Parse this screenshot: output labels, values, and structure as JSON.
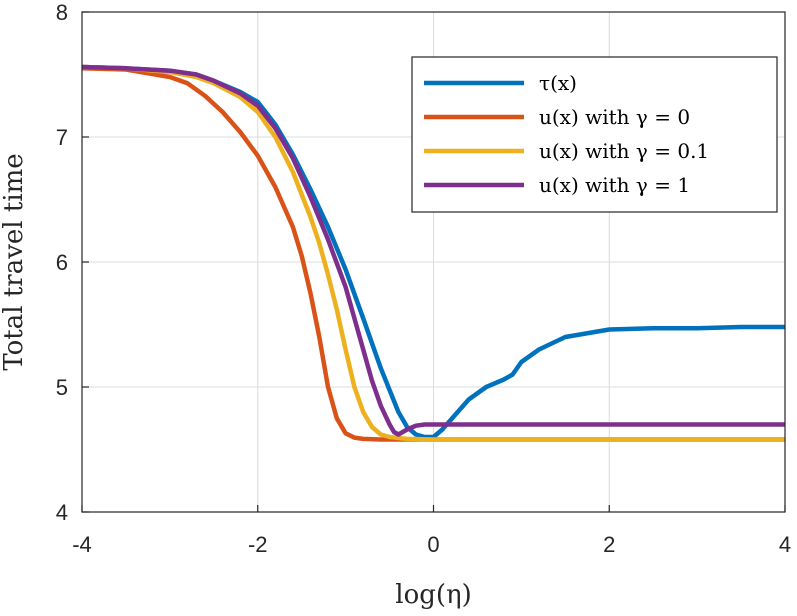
{
  "chart_data": {
    "type": "line",
    "xlabel": "log(η)",
    "ylabel": "Total travel time",
    "xlim": [
      -4,
      4
    ],
    "ylim": [
      4,
      8
    ],
    "xticks": [
      "-4",
      "-2",
      "0",
      "2",
      "4"
    ],
    "yticks": [
      "4",
      "5",
      "6",
      "7",
      "8"
    ],
    "xtick_values": [
      -4,
      -2,
      0,
      2,
      4
    ],
    "ytick_values": [
      4,
      5,
      6,
      7,
      8
    ],
    "grid": true,
    "legend_position": "top-right",
    "series": [
      {
        "name": "τ(x)",
        "color": "#0072BD",
        "x": [
          -4,
          -3.5,
          -3,
          -2.7,
          -2.5,
          -2.2,
          -2,
          -1.8,
          -1.6,
          -1.4,
          -1.2,
          -1,
          -0.8,
          -0.6,
          -0.4,
          -0.3,
          -0.2,
          -0.1,
          0,
          0.1,
          0.2,
          0.4,
          0.6,
          0.8,
          0.9,
          1,
          1.2,
          1.5,
          2,
          2.5,
          3,
          3.5,
          4
        ],
        "y": [
          7.56,
          7.55,
          7.53,
          7.5,
          7.45,
          7.36,
          7.28,
          7.1,
          6.86,
          6.58,
          6.28,
          5.94,
          5.55,
          5.15,
          4.8,
          4.68,
          4.62,
          4.6,
          4.6,
          4.66,
          4.74,
          4.9,
          5.0,
          5.06,
          5.1,
          5.2,
          5.3,
          5.4,
          5.46,
          5.47,
          5.47,
          5.48,
          5.48
        ]
      },
      {
        "name": "u(x) with γ = 0",
        "color": "#D95319",
        "x": [
          -4,
          -3.5,
          -3,
          -2.8,
          -2.6,
          -2.4,
          -2.2,
          -2,
          -1.8,
          -1.6,
          -1.5,
          -1.4,
          -1.3,
          -1.2,
          -1.1,
          -1,
          -0.9,
          -0.8,
          -0.6,
          0,
          2,
          4
        ],
        "y": [
          7.55,
          7.54,
          7.48,
          7.43,
          7.33,
          7.2,
          7.04,
          6.85,
          6.6,
          6.28,
          6.05,
          5.75,
          5.4,
          5.0,
          4.75,
          4.63,
          4.595,
          4.585,
          4.58,
          4.58,
          4.58,
          4.58
        ]
      },
      {
        "name": "u(x) with γ = 0.1",
        "color": "#EDB120",
        "x": [
          -4,
          -3.5,
          -3,
          -2.7,
          -2.5,
          -2.2,
          -2,
          -1.8,
          -1.6,
          -1.4,
          -1.3,
          -1.2,
          -1.1,
          -1,
          -0.9,
          -0.8,
          -0.7,
          -0.6,
          -0.5,
          -0.3,
          0,
          2,
          4
        ],
        "y": [
          7.56,
          7.55,
          7.52,
          7.48,
          7.43,
          7.32,
          7.2,
          7.0,
          6.72,
          6.36,
          6.15,
          5.9,
          5.62,
          5.3,
          5.0,
          4.8,
          4.68,
          4.62,
          4.6,
          4.585,
          4.58,
          4.58,
          4.58
        ]
      },
      {
        "name": "u(x) with γ = 1",
        "color": "#7E2F8E",
        "x": [
          -4,
          -3.5,
          -3,
          -2.7,
          -2.5,
          -2.2,
          -2,
          -1.8,
          -1.6,
          -1.4,
          -1.2,
          -1,
          -0.9,
          -0.8,
          -0.7,
          -0.6,
          -0.5,
          -0.45,
          -0.4,
          -0.3,
          -0.2,
          -0.1,
          0,
          0.5,
          1,
          2,
          3,
          4
        ],
        "y": [
          7.56,
          7.55,
          7.53,
          7.5,
          7.45,
          7.35,
          7.25,
          7.07,
          6.83,
          6.52,
          6.18,
          5.8,
          5.55,
          5.3,
          5.05,
          4.85,
          4.7,
          4.64,
          4.62,
          4.66,
          4.69,
          4.7,
          4.7,
          4.7,
          4.7,
          4.7,
          4.7,
          4.7
        ]
      }
    ]
  }
}
